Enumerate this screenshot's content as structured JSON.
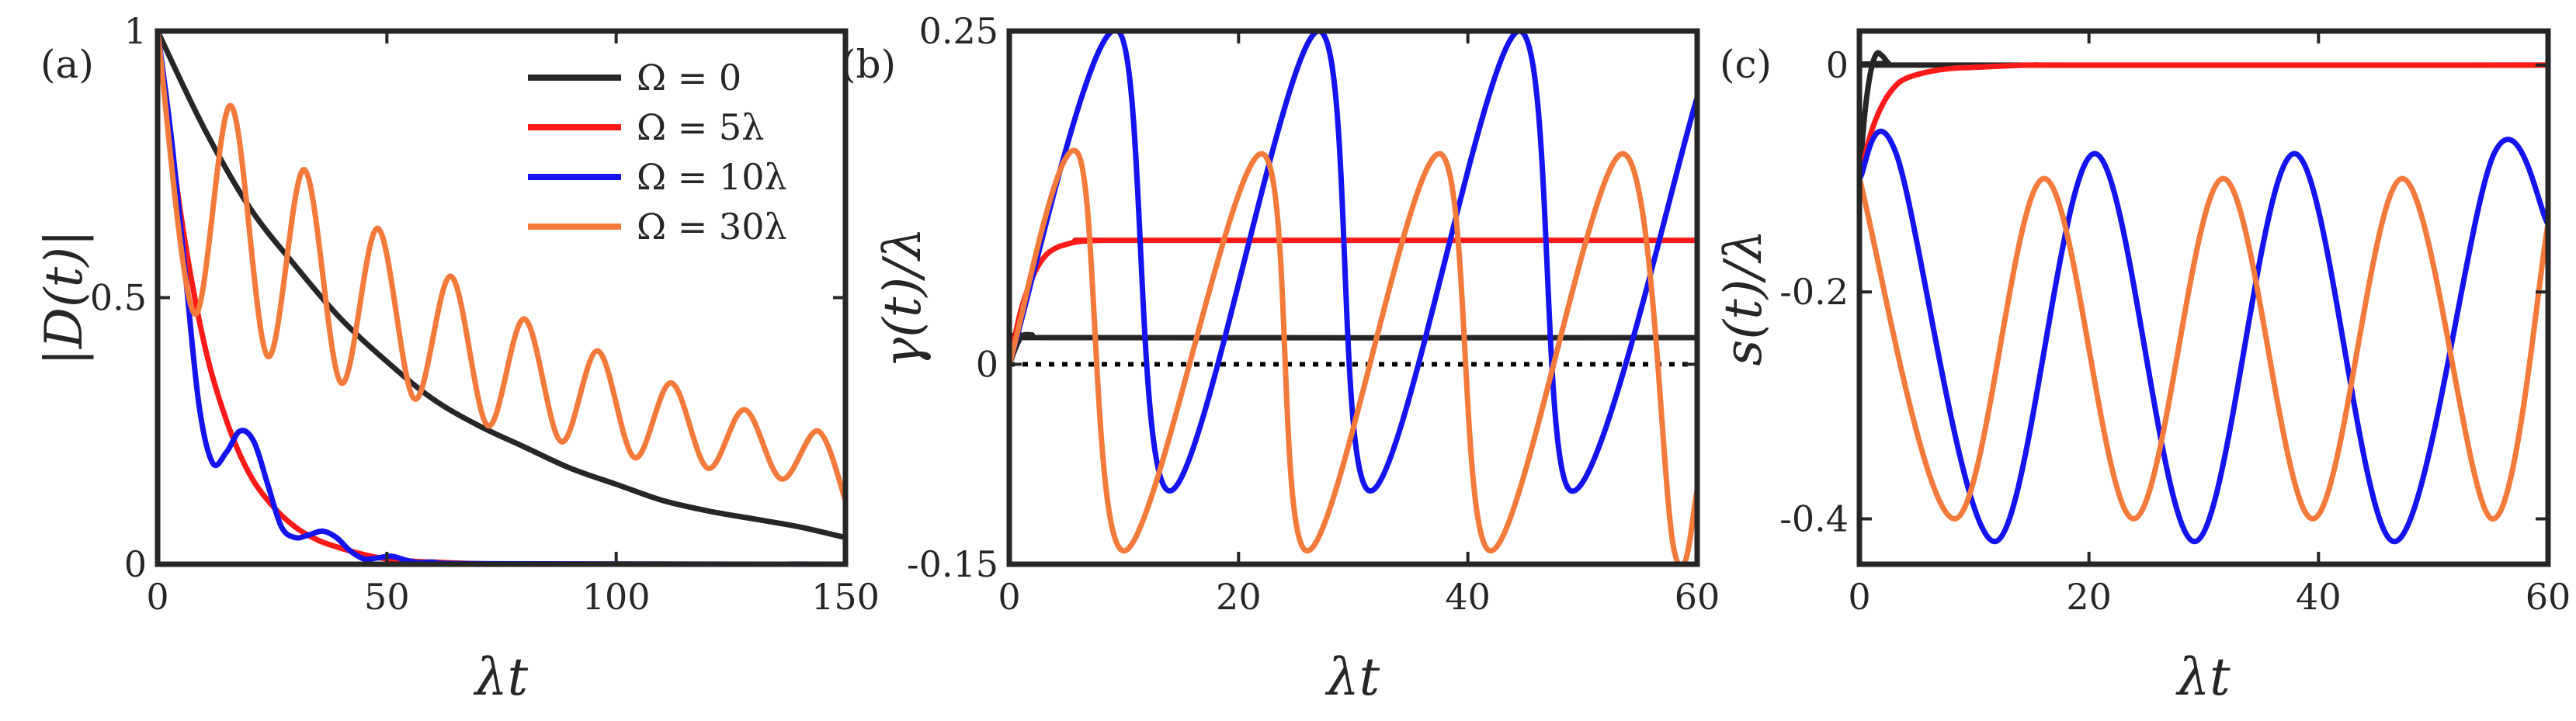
{
  "colors": {
    "black": "#262626",
    "red": "#ff1a1a",
    "blue": "#1414f0",
    "orange": "#f47a3c"
  },
  "legend": {
    "entries": [
      {
        "label": "Ω = 0",
        "color": "#262626"
      },
      {
        "label": "Ω = 5λ",
        "color": "#ff1a1a"
      },
      {
        "label": "Ω = 10λ",
        "color": "#1414f0"
      },
      {
        "label": "Ω = 30λ",
        "color": "#f47a3c"
      }
    ],
    "placement": "top-right of panel (a)"
  },
  "chart_data": [
    {
      "type": "line",
      "panel": "(a)",
      "xlabel": "λt",
      "ylabel": "|D(t)|",
      "xlim": [
        0,
        150
      ],
      "ylim": [
        0,
        1
      ],
      "xticks": [
        "0",
        "50",
        "100",
        "150"
      ],
      "yticks": [
        "0",
        "0.5",
        "1"
      ],
      "grid": false,
      "series": [
        {
          "name": "Ω = 0",
          "color": "#262626",
          "x": [
            0,
            10,
            20,
            30,
            40,
            50,
            60,
            70,
            80,
            90,
            100,
            110,
            120,
            130,
            140,
            150
          ],
          "y": [
            1,
            0.82,
            0.67,
            0.56,
            0.46,
            0.38,
            0.31,
            0.26,
            0.22,
            0.18,
            0.15,
            0.12,
            0.1,
            0.085,
            0.07,
            0.05
          ]
        },
        {
          "name": "Ω = 5λ",
          "color": "#ff1a1a",
          "x": [
            0,
            5,
            10,
            15,
            20,
            25,
            30,
            35,
            40,
            45,
            50,
            55,
            60,
            80,
            150
          ],
          "y": [
            1,
            0.66,
            0.42,
            0.27,
            0.17,
            0.11,
            0.07,
            0.045,
            0.03,
            0.018,
            0.01,
            0.006,
            0.004,
            0,
            0
          ]
        },
        {
          "name": "Ω = 10λ",
          "color": "#1414f0",
          "x": [
            0,
            3,
            6,
            9,
            12,
            15,
            18,
            21,
            24,
            27,
            30,
            33,
            36,
            39,
            42,
            45,
            48,
            51,
            54,
            57,
            60,
            70,
            150
          ],
          "y": [
            1,
            0.8,
            0.55,
            0.3,
            0.19,
            0.21,
            0.25,
            0.23,
            0.15,
            0.07,
            0.05,
            0.055,
            0.062,
            0.05,
            0.025,
            0.01,
            0.012,
            0.015,
            0.008,
            0.003,
            0.004,
            0.001,
            0
          ]
        },
        {
          "name": "Ω = 30λ",
          "color": "#f47a3c",
          "x": [
            0,
            8,
            16,
            24,
            32,
            40,
            48,
            56,
            64,
            72,
            80,
            88,
            96,
            104,
            112,
            120,
            128,
            136,
            144,
            150
          ],
          "y": [
            1,
            0.47,
            0.86,
            0.39,
            0.74,
            0.34,
            0.63,
            0.31,
            0.54,
            0.26,
            0.46,
            0.23,
            0.4,
            0.2,
            0.34,
            0.18,
            0.29,
            0.16,
            0.25,
            0.12
          ]
        }
      ]
    },
    {
      "type": "line",
      "panel": "(b)",
      "xlabel": "λt",
      "ylabel": "γ(t)/λ",
      "xlim": [
        0,
        60
      ],
      "ylim": [
        -0.15,
        0.25
      ],
      "xticks": [
        "0",
        "20",
        "40",
        "60"
      ],
      "yticks": [
        "-0.15",
        "0",
        "0.25"
      ],
      "grid": false,
      "reference_line": {
        "y": 0,
        "style": "dotted"
      },
      "series": [
        {
          "name": "Ω = 0",
          "color": "#262626",
          "x": [
            0,
            1,
            2,
            3,
            60
          ],
          "y": [
            0,
            0.02,
            0.022,
            0.02,
            0.02
          ]
        },
        {
          "name": "Ω = 5λ",
          "color": "#ff1a1a",
          "x": [
            0,
            1,
            2,
            3,
            4,
            5,
            6,
            8,
            10,
            60
          ],
          "y": [
            0,
            0.04,
            0.065,
            0.08,
            0.087,
            0.09,
            0.092,
            0.093,
            0.093,
            0.093
          ]
        },
        {
          "name": "Ω = 10λ",
          "color": "#1414f0",
          "x": [
            0,
            9.5,
            14,
            27,
            31.5,
            44.5,
            49,
            60
          ],
          "y": [
            0,
            0.25,
            -0.095,
            0.25,
            -0.095,
            0.25,
            -0.095,
            0.2
          ]
        },
        {
          "name": "Ω = 30λ",
          "color": "#f47a3c",
          "x": [
            0,
            6,
            10,
            22,
            26,
            37.5,
            42,
            53.5,
            58,
            60
          ],
          "y": [
            0,
            0.158,
            -0.14,
            0.158,
            -0.14,
            0.158,
            -0.14,
            0.158,
            -0.14,
            -0.095
          ]
        }
      ]
    },
    {
      "type": "line",
      "panel": "(c)",
      "xlabel": "λt",
      "ylabel": "s(t)/λ",
      "xlim": [
        0,
        60
      ],
      "ylim": [
        -0.44,
        0.03
      ],
      "xticks": [
        "0",
        "20",
        "40",
        "60"
      ],
      "yticks": [
        "-0.4",
        "-0.2",
        "0"
      ],
      "grid": false,
      "reference_line": {
        "y": 0,
        "style": "dotted"
      },
      "series": [
        {
          "name": "Ω = 0",
          "color": "#262626",
          "x": [
            0,
            0.5,
            1,
            1.5,
            2,
            2.5,
            3,
            60
          ],
          "y": [
            -0.1,
            -0.04,
            -0.005,
            0.01,
            0.008,
            0.002,
            0,
            0
          ]
        },
        {
          "name": "Ω = 5λ",
          "color": "#ff1a1a",
          "x": [
            0,
            1,
            2,
            3,
            4,
            6,
            8,
            10,
            15,
            20,
            60
          ],
          "y": [
            -0.1,
            -0.06,
            -0.035,
            -0.02,
            -0.012,
            -0.006,
            -0.003,
            -0.002,
            0,
            0,
            0
          ]
        },
        {
          "name": "Ω = 10λ",
          "color": "#1414f0",
          "x": [
            0,
            3.2,
            11.8,
            20.5,
            29.2,
            37.9,
            46.6,
            55.3,
            60
          ],
          "y": [
            -0.1,
            -0.078,
            -0.42,
            -0.078,
            -0.42,
            -0.078,
            -0.42,
            -0.078,
            -0.14
          ]
        },
        {
          "name": "Ω = 30λ",
          "color": "#f47a3c",
          "x": [
            0,
            8.3,
            16.1,
            23.9,
            31.7,
            39.5,
            47.3,
            55.1,
            60
          ],
          "y": [
            -0.1,
            -0.4,
            -0.1,
            -0.4,
            -0.1,
            -0.4,
            -0.1,
            -0.4,
            -0.14
          ]
        }
      ]
    }
  ]
}
